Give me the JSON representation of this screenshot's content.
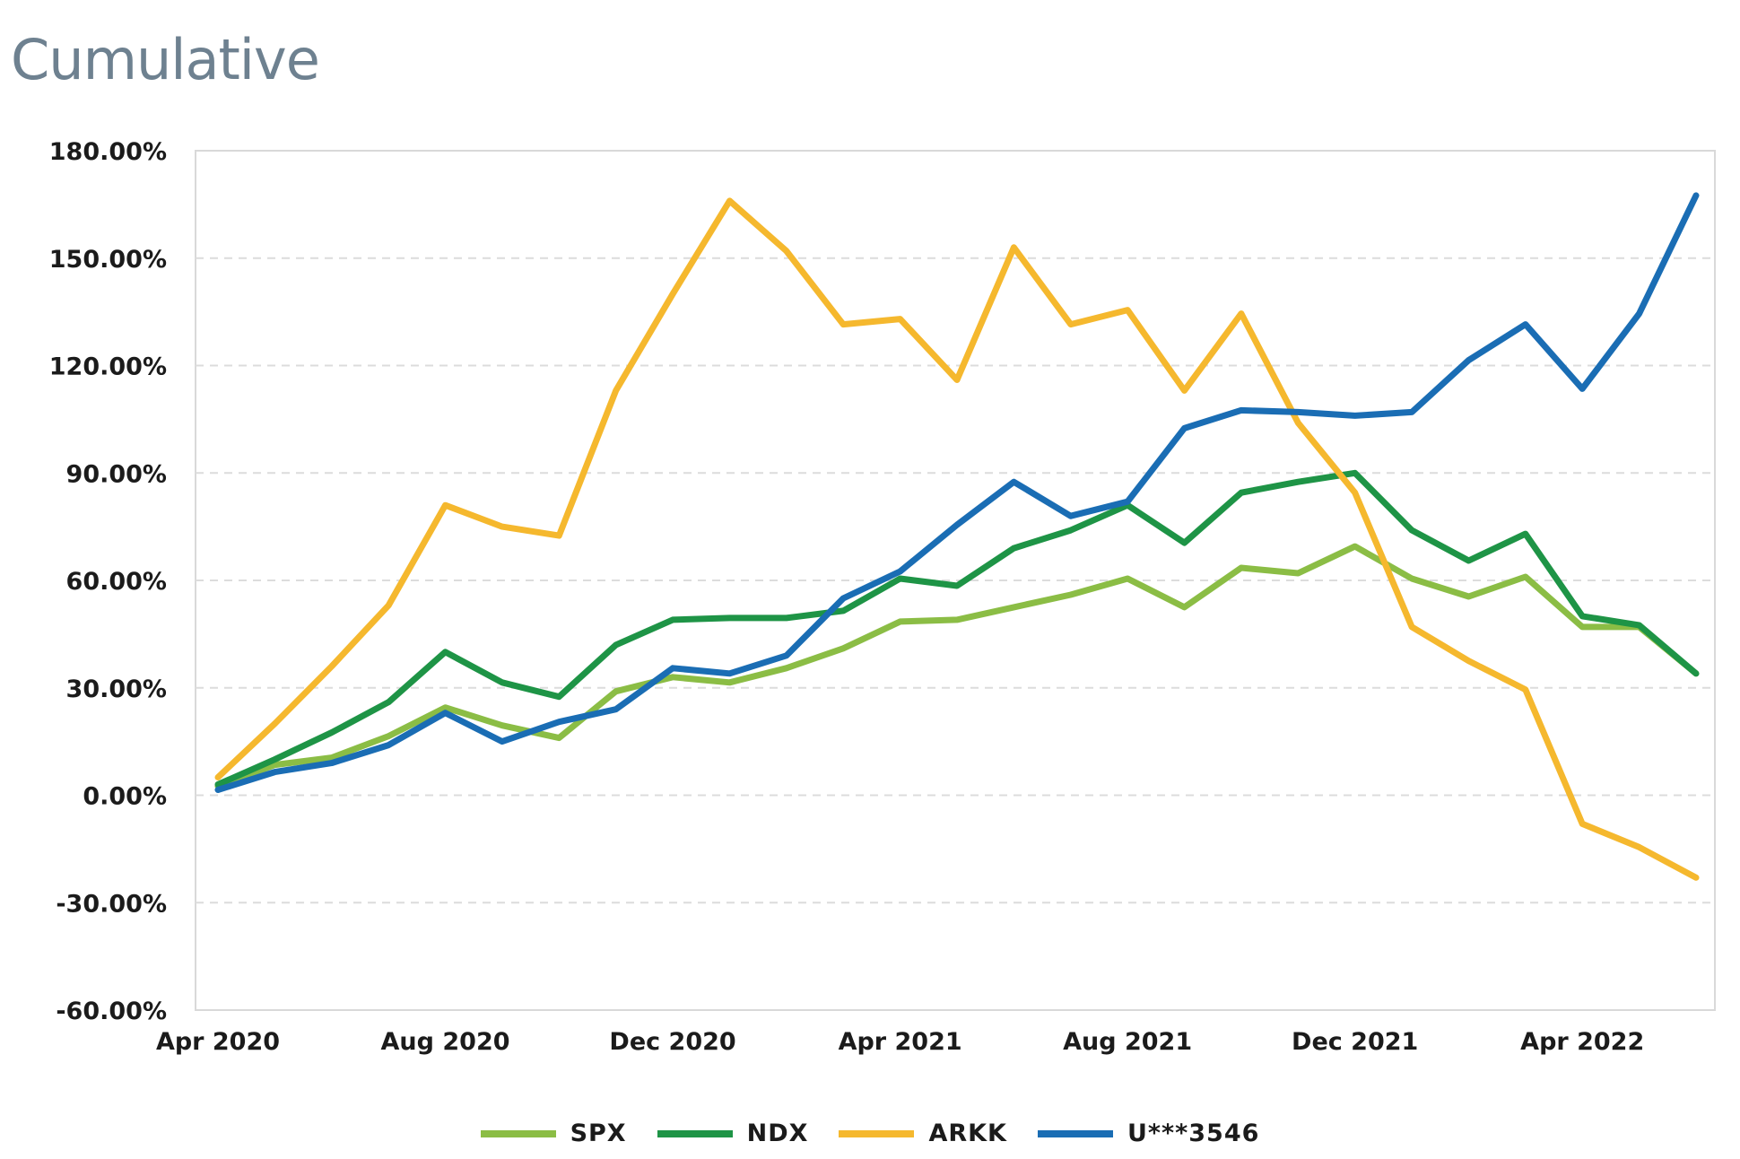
{
  "chart_data": {
    "type": "line",
    "title": "Cumulative",
    "xlabel": "",
    "ylabel": "",
    "ylim": [
      -60,
      180
    ],
    "y_ticks": [
      "180.00%",
      "150.00%",
      "120.00%",
      "90.00%",
      "60.00%",
      "30.00%",
      "0.00%",
      "-30.00%",
      "-60.00%"
    ],
    "y_tick_values": [
      180,
      150,
      120,
      90,
      60,
      30,
      0,
      -30,
      -60
    ],
    "x_ticks": [
      "Apr 2020",
      "Aug 2020",
      "Dec 2020",
      "Apr 2021",
      "Aug 2021",
      "Dec 2021",
      "Apr 2022"
    ],
    "x_tick_index": [
      0,
      4,
      8,
      12,
      16,
      20,
      24
    ],
    "x": [
      "Apr 2020",
      "May 2020",
      "Jun 2020",
      "Jul 2020",
      "Aug 2020",
      "Sep 2020",
      "Oct 2020",
      "Nov 2020",
      "Dec 2020",
      "Jan 2021",
      "Feb 2021",
      "Mar 2021",
      "Apr 2021",
      "May 2021",
      "Jun 2021",
      "Jul 2021",
      "Aug 2021",
      "Sep 2021",
      "Oct 2021",
      "Nov 2021",
      "Dec 2021",
      "Jan 2022",
      "Feb 2022",
      "Mar 2022",
      "Apr 2022",
      "May 2022",
      "Jun 2022"
    ],
    "grid": "horizontal-dashed",
    "legend_position": "bottom",
    "series": [
      {
        "name": "SPX",
        "color": "#8bbd45",
        "values": [
          2.5,
          8.5,
          10.5,
          16.5,
          24.5,
          19.5,
          16,
          29,
          33,
          31.5,
          35.5,
          41,
          48.5,
          49,
          52.5,
          56,
          60.5,
          52.5,
          63.5,
          62,
          69.5,
          60.5,
          55.5,
          61,
          47,
          47,
          34
        ]
      },
      {
        "name": "NDX",
        "color": "#1e9446",
        "values": [
          3,
          10,
          17.5,
          26,
          40,
          31.5,
          27.5,
          42,
          49,
          49.5,
          49.5,
          51.5,
          60.5,
          58.5,
          69,
          74,
          81,
          70.5,
          84.5,
          87.5,
          90,
          74,
          65.5,
          73,
          50,
          47.5,
          34
        ]
      },
      {
        "name": "ARKK",
        "color": "#f5b82e",
        "values": [
          5,
          20,
          36,
          53,
          81,
          75,
          72.5,
          113,
          140,
          166,
          152,
          131.5,
          133,
          116,
          153,
          131.5,
          135.5,
          113,
          134.5,
          104,
          84.5,
          47,
          37.5,
          29.5,
          -8,
          -14.5,
          -23
        ]
      },
      {
        "name": "U***3546",
        "color": "#1a6db4",
        "values": [
          1.5,
          6.5,
          9,
          14,
          23,
          15,
          20.5,
          24,
          35.5,
          34,
          39,
          55,
          62.5,
          75.5,
          87.5,
          78,
          82,
          102.5,
          107.5,
          107,
          106,
          107,
          121.5,
          131.5,
          113.5,
          134.5,
          167.5
        ]
      }
    ]
  }
}
